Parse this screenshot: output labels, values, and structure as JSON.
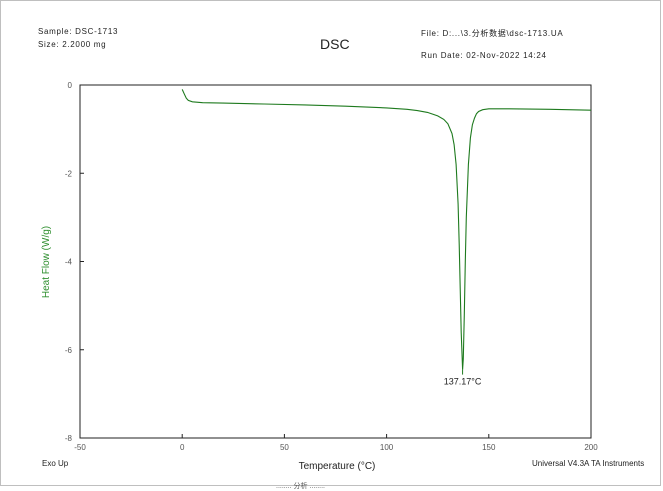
{
  "header": {
    "sample": "Sample: DSC-1713",
    "size": "Size:  2.2000 mg",
    "title": "DSC",
    "file": "File: D:...\\3.分析数据\\dsc-1713.UA",
    "run_date": "Run Date: 02-Nov-2022 14:24"
  },
  "footer": {
    "exo": "Exo Up",
    "instrument": "Universal V4.3A TA Instruments",
    "caption": "........  分析  ........"
  },
  "colors": {
    "curve": "#1e7a1e",
    "ylabel": "#2f8f2f",
    "axis": "#222222",
    "tick": "#555555"
  },
  "chart_data": {
    "type": "line",
    "title": "DSC",
    "xlabel": "Temperature (°C)",
    "ylabel": "Heat Flow (W/g)",
    "xlim": [
      -50,
      200
    ],
    "ylim": [
      -8,
      0
    ],
    "xticks": [
      -50,
      0,
      50,
      100,
      150,
      200
    ],
    "yticks": [
      0,
      -2,
      -4,
      -6,
      -8
    ],
    "grid": false,
    "series": [
      {
        "x": [
          0,
          1,
          2,
          3,
          5,
          10,
          20,
          40,
          60,
          80,
          100,
          110,
          115,
          120,
          125,
          128,
          130,
          132,
          133,
          134,
          135,
          135.5,
          136,
          136.5,
          137.17,
          137.5,
          138,
          138.5,
          139,
          140,
          141,
          142,
          143,
          144,
          145,
          147,
          150,
          160,
          180,
          200
        ],
        "y": [
          -0.1,
          -0.2,
          -0.3,
          -0.35,
          -0.38,
          -0.4,
          -0.41,
          -0.43,
          -0.45,
          -0.48,
          -0.52,
          -0.55,
          -0.58,
          -0.62,
          -0.7,
          -0.78,
          -0.88,
          -1.1,
          -1.35,
          -1.8,
          -2.7,
          -3.6,
          -4.6,
          -5.6,
          -6.45,
          -6.2,
          -5.2,
          -4.0,
          -3.0,
          -1.8,
          -1.2,
          -0.9,
          -0.75,
          -0.65,
          -0.6,
          -0.56,
          -0.54,
          -0.54,
          -0.55,
          -0.57
        ]
      }
    ],
    "annotations": [
      {
        "text": "137.17°C",
        "x": 137.17,
        "y": -6.45
      }
    ]
  }
}
